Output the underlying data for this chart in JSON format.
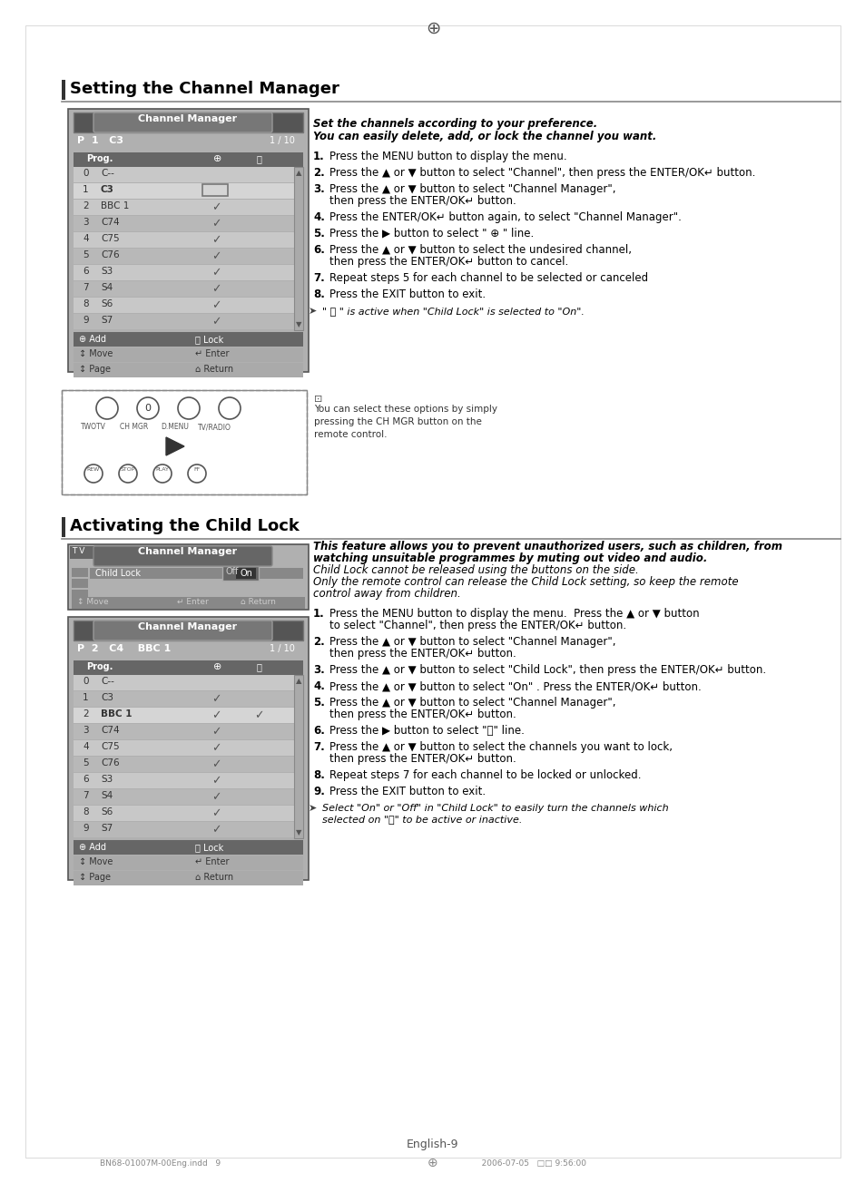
{
  "page_bg": "#ffffff",
  "header_line_color": "#000000",
  "section1_title": "Setting the Channel Manager",
  "section2_title": "Activating the Child Lock",
  "footer_text": "English-9",
  "footer_small": "BN68-01007M-00Eng.indd   9                                                                                                    2006-07-05   □□ 9:56:00",
  "cm1_title": "Channel Manager",
  "cm1_header": "P  1   C3",
  "cm1_page": "1 / 10",
  "cm1_col_headers": [
    "Prog.",
    "⊕",
    "🔒"
  ],
  "cm1_rows": [
    [
      "0",
      "C--",
      "",
      ""
    ],
    [
      "1",
      "C3",
      "□",
      ""
    ],
    [
      "2",
      "BBC 1",
      "✓",
      ""
    ],
    [
      "3",
      "C74",
      "✓",
      ""
    ],
    [
      "4",
      "C75",
      "✓",
      ""
    ],
    [
      "5",
      "C76",
      "✓",
      ""
    ],
    [
      "6",
      "S3",
      "✓",
      ""
    ],
    [
      "7",
      "S4",
      "✓",
      ""
    ],
    [
      "8",
      "S6",
      "✓",
      ""
    ],
    [
      "9",
      "S7",
      "✓",
      ""
    ]
  ],
  "cm1_footer1": "⊕ Add          🔒 Lock",
  "cm1_footer2": "↑↓ Move        ↵ Enter",
  "cm1_footer3": "↑↓ Page         ⌂ Return",
  "section1_italic1": "Set the channels according to your preference.",
  "section1_italic2": "You can easily delete, add, or lock the channel you want.",
  "section1_steps": [
    "Press the MENU button to display the menu.",
    "Press the ▲ or ▼ button to select \"Channel\", then press the ENTER/OK↵ button.",
    "Press the ▲ or ▼ button to select \"Channel Manager\",\nthen press the ENTER/OK↵ button.",
    "Press the ENTER/OK↵ button again, to select \"Channel Manager\".",
    "Press the ▶ button to select \" ⊕ \" line.",
    "Press the ▲ or ▼ button to select the undesired channel,\nthen press the ENTER/OK↵ button to cancel.",
    "Repeat steps 5 for each channel to be selected or canceled",
    "Press the EXIT button to exit."
  ],
  "section1_note": "\"🔒\" is active when \"Child Lock\" is selected to \"On\".",
  "remote_note": "You can select these options by simply\npressing the CH MGR button on the\nremote control.",
  "cm2_tv_label": "T V",
  "cm2_title": "Channel Manager",
  "cm2_childlock_label": "Child Lock",
  "cm2_childlock_off": "Off",
  "cm2_childlock_on": "On",
  "cm3_title": "Channel Manager",
  "cm3_header": "P  2   C4    BBC 1",
  "cm3_page": "1 / 10",
  "cm3_rows": [
    [
      "0",
      "C--",
      "",
      ""
    ],
    [
      "1",
      "C3",
      "✓",
      ""
    ],
    [
      "2",
      "BBC 1",
      "✓",
      "✓"
    ],
    [
      "3",
      "C74",
      "✓",
      ""
    ],
    [
      "4",
      "C75",
      "✓",
      ""
    ],
    [
      "5",
      "C76",
      "✓",
      ""
    ],
    [
      "6",
      "S3",
      "✓",
      ""
    ],
    [
      "7",
      "S4",
      "✓",
      ""
    ],
    [
      "8",
      "S6",
      "✓",
      ""
    ],
    [
      "9",
      "S7",
      "✓",
      ""
    ]
  ],
  "section2_italic1": "This feature allows you to prevent unauthorized users, such as children, from",
  "section2_italic2": "watching unsuitable programmes by muting out video and audio.",
  "section2_italic3": "Child Lock cannot be released using the buttons on the side.",
  "section2_italic4": "Only the remote control can release the Child Lock setting, so keep the remote",
  "section2_italic5": "control away from children.",
  "section2_steps": [
    "Press the MENU button to display the menu.  Press the ▲ or ▼ button\nto select \"Channel\", then press the ENTER/OK↵ button.",
    "Press the ▲ or ▼ button to select \"Channel Manager\",\nthen press the ENTER/OK↵ button.",
    "Press the ▲ or ▼ button to select \"Child Lock\", then press the ENTER/OK↵ button.",
    "Press the ▲ or ▼ button to select \"On\" . Press the ENTER/OK↵ button.",
    "Press the ▲ or ▼ button to select \"Channel Manager\",\nthen press the ENTER/OK↵ button.",
    "Press the ▶ button to select \"🔒\" line.",
    "Press the ▲ or ▼ button to select the channels you want to lock,\nthen press the ENTER/OK↵ button.",
    "Repeat steps 7 for each channel to be locked or unlocked.",
    "Press the EXIT button to exit."
  ],
  "section2_note": "Select \"On\" or \"Off\" in \"Child Lock\" to easily turn the channels which\nselected on \"🔒\" to be active or inactive."
}
